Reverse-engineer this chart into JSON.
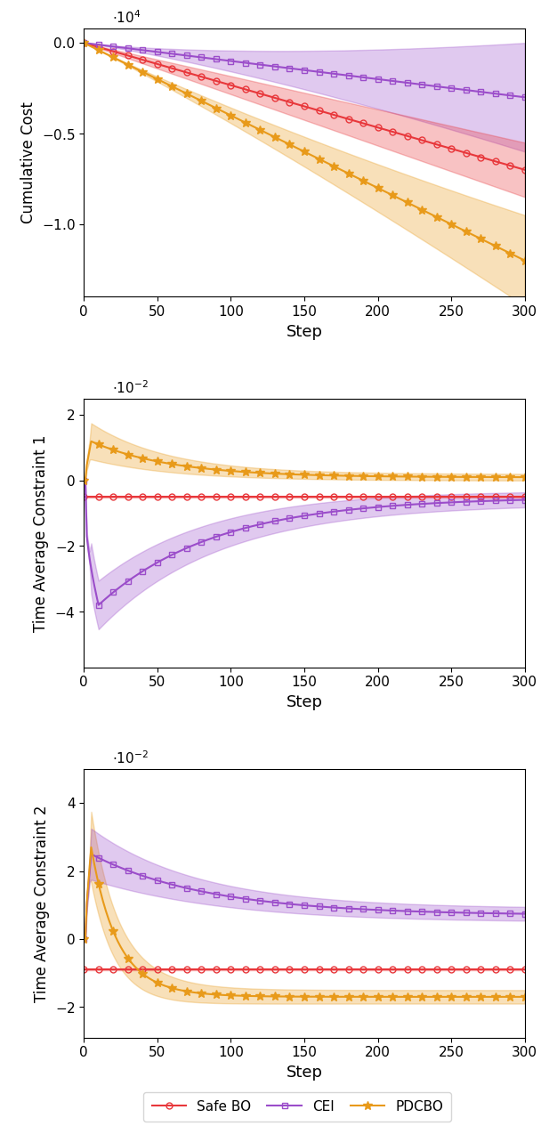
{
  "steps": 300,
  "marker_every": 10,
  "colors": {
    "safe_bo": "#e8373b",
    "cei": "#9b4dca",
    "pdcbo": "#e89a1a"
  },
  "fill_alpha": 0.3,
  "line_width": 1.5,
  "marker_size": 5,
  "plot1": {
    "ylabel": "Cumulative Cost",
    "xlabel": "Step",
    "ylim": [
      -14000,
      800
    ],
    "yticks": [
      0,
      -5000,
      -10000
    ],
    "yticklabels": [
      "0.0",
      "-0.5",
      "-1.0"
    ],
    "scale_label": "$\\cdot10^{4}$"
  },
  "plot2": {
    "ylabel": "Time Average Constraint 1",
    "xlabel": "Step",
    "ylim": [
      -0.057,
      0.025
    ],
    "yticks": [
      -0.04,
      -0.02,
      0.0,
      0.02
    ],
    "yticklabels": [
      "-4",
      "-2",
      "0",
      "2"
    ],
    "scale_label": "$\\cdot10^{-2}$"
  },
  "plot3": {
    "ylabel": "Time Average Constraint 2",
    "xlabel": "Step",
    "ylim": [
      -0.029,
      0.05
    ],
    "yticks": [
      -0.02,
      0.0,
      0.02,
      0.04
    ],
    "yticklabels": [
      "-2",
      "0",
      "2",
      "4"
    ],
    "scale_label": "$\\cdot10^{-2}$"
  },
  "legend": {
    "safe_bo_label": "Safe BO",
    "cei_label": "CEI",
    "pdcbo_label": "PDCBO"
  }
}
